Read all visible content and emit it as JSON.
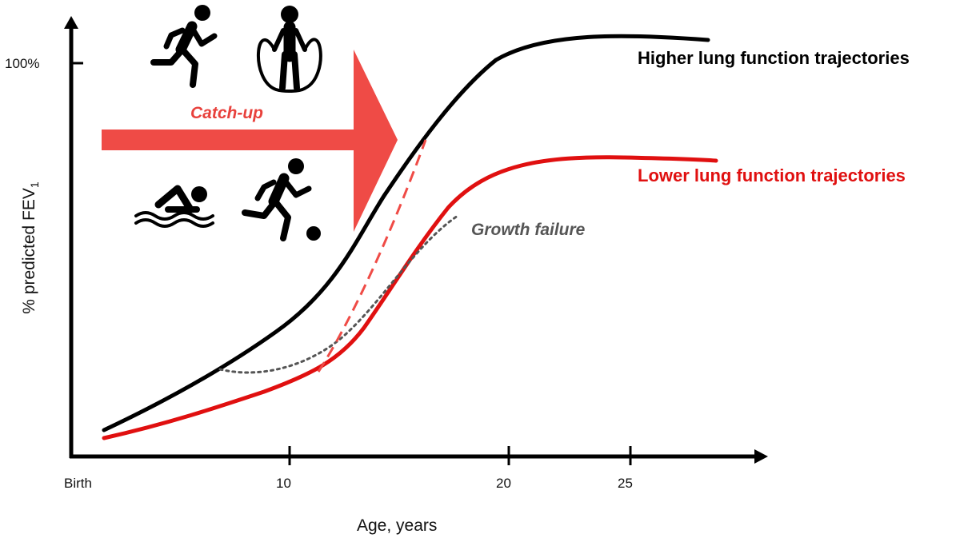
{
  "axes": {
    "y_label": "% predicted FEV",
    "y_label_subscript": "1",
    "y_tick_100": "100%",
    "x_label": "Age, years",
    "x_ticks": [
      "Birth",
      "10",
      "20",
      "25"
    ]
  },
  "labels": {
    "higher": "Higher lung function trajectories",
    "lower": "Lower lung function trajectories",
    "catch_up": "Catch-up",
    "growth_failure": "Growth failure"
  },
  "colors": {
    "higher": "#000000",
    "lower": "#e01010",
    "catch_up": "#ef4b46",
    "growth_failure": "#555555"
  },
  "icons": [
    "running-person-icon",
    "jump-rope-icon",
    "swimming-person-icon",
    "soccer-player-icon"
  ]
}
